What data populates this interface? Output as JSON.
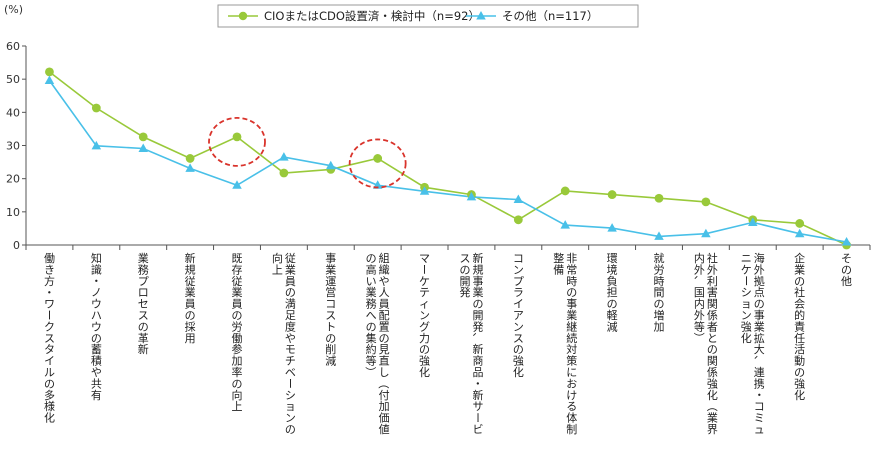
{
  "chart_data": {
    "type": "line",
    "yunit": "(%)",
    "ylim": [
      0,
      60
    ],
    "yticks": [
      0,
      10,
      20,
      30,
      40,
      50,
      60
    ],
    "grid": false,
    "legend_position": "top-center",
    "categories": [
      "働き方・ワークスタイルの多様化",
      "知識・ノウハウの蓄積や共有",
      "業務プロセスの革新",
      "新規従業員の採用",
      "既存従業員の労働参加率の向上",
      "従業員の満足度やモチベーションの向上",
      "事業運営コストの削減",
      "組織や人員配置の見直し（付加価値の高い業務への集約等）",
      "マーケティング力の強化",
      "新規事業の開発、新商品・新サービスの開発",
      "コンプライアンスの強化",
      "非常時の事業継続対策における体制整備",
      "環境負担の軽減",
      "就労時間の増加",
      "社外利害関係者との関係強化（業界内外、国内外等）",
      "海外拠点の事業拡大、連携・コミュニケーション強化",
      "企業の社会的責任活動の強化",
      "その他"
    ],
    "series": [
      {
        "name": "CIOまたはCDO設置済・検討中（n=92）",
        "color": "#99c93a",
        "marker": "circle",
        "values": [
          52.2,
          41.3,
          32.6,
          26.1,
          32.6,
          21.7,
          22.8,
          26.1,
          17.4,
          15.2,
          7.6,
          16.3,
          15.2,
          14.1,
          13.0,
          7.6,
          6.5,
          0.0
        ]
      },
      {
        "name": "その他（n=117）",
        "color": "#49c0e8",
        "marker": "triangle",
        "values": [
          49.6,
          29.9,
          29.1,
          23.1,
          18.0,
          26.5,
          23.9,
          18.0,
          16.2,
          14.5,
          13.7,
          6.0,
          5.1,
          2.6,
          3.4,
          6.8,
          3.4,
          0.9
        ]
      }
    ],
    "highlights": [
      4,
      7
    ],
    "highlight_color": "#d9332b"
  }
}
